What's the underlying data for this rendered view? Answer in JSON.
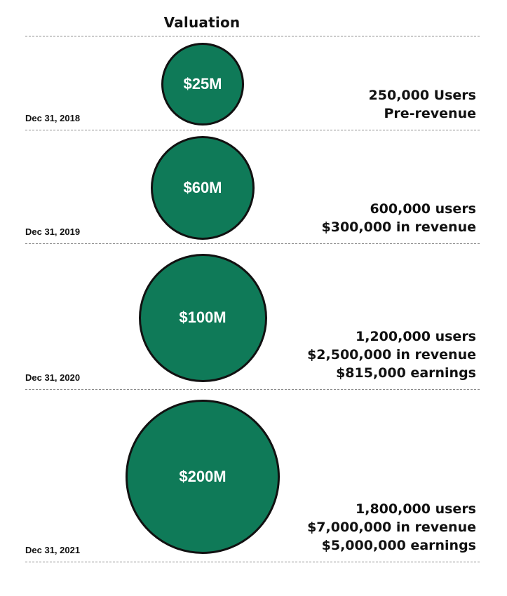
{
  "chart_data": {
    "type": "bubble",
    "title": "Valuation",
    "series": [
      {
        "date": "Dec 31, 2018",
        "value": 25,
        "label": "$25M",
        "metrics": [
          "250,000 Users",
          "Pre-revenue"
        ]
      },
      {
        "date": "Dec 31, 2019",
        "value": 60,
        "label": "$60M",
        "metrics": [
          "600,000 users",
          "$300,000 in revenue"
        ]
      },
      {
        "date": "Dec 31, 2020",
        "value": 100,
        "label": "$100M",
        "metrics": [
          "1,200,000 users",
          "$2,500,000 in revenue",
          "$815,000 earnings"
        ]
      },
      {
        "date": "Dec 31, 2021",
        "value": 200,
        "label": "$200M",
        "metrics": [
          "1,800,000 users",
          "$7,000,000 in revenue",
          "$5,000,000 earnings"
        ]
      }
    ]
  },
  "colors": {
    "bubble_fill": "#0f7a58",
    "bubble_stroke": "#111111",
    "divider": "#8a8a8a"
  }
}
